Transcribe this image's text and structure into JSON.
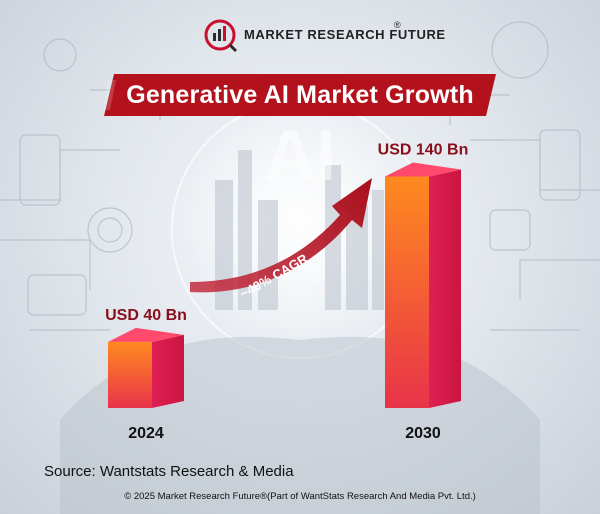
{
  "brand": {
    "name": "MARKET RESEARCH FUTURE",
    "reg": "®"
  },
  "decor": {
    "watermark": "AI"
  },
  "chart_data": {
    "type": "bar",
    "title": "Generative AI Market Growth",
    "categories": [
      "2024",
      "2030"
    ],
    "values": [
      40,
      140
    ],
    "value_labels": [
      "USD 40 Bn",
      "USD 140 Bn"
    ],
    "unit": "USD Bn",
    "annotation": "~40% CAGR",
    "ylim": [
      0,
      150
    ],
    "grid": false,
    "legend": "none",
    "colors": {
      "front_top": "#ff8a1f",
      "front_bottom": "#e8334a",
      "side": "#e01f55",
      "top": "#ff4a6e",
      "arrow": "#b3121d"
    }
  },
  "footer": {
    "source": "Source: Wantstats Research & Media",
    "copyright": "© 2025 Market Research Future®(Part of WantStats Research And Media Pvt. Ltd.)"
  },
  "colors": {
    "banner": "#b3121d"
  }
}
